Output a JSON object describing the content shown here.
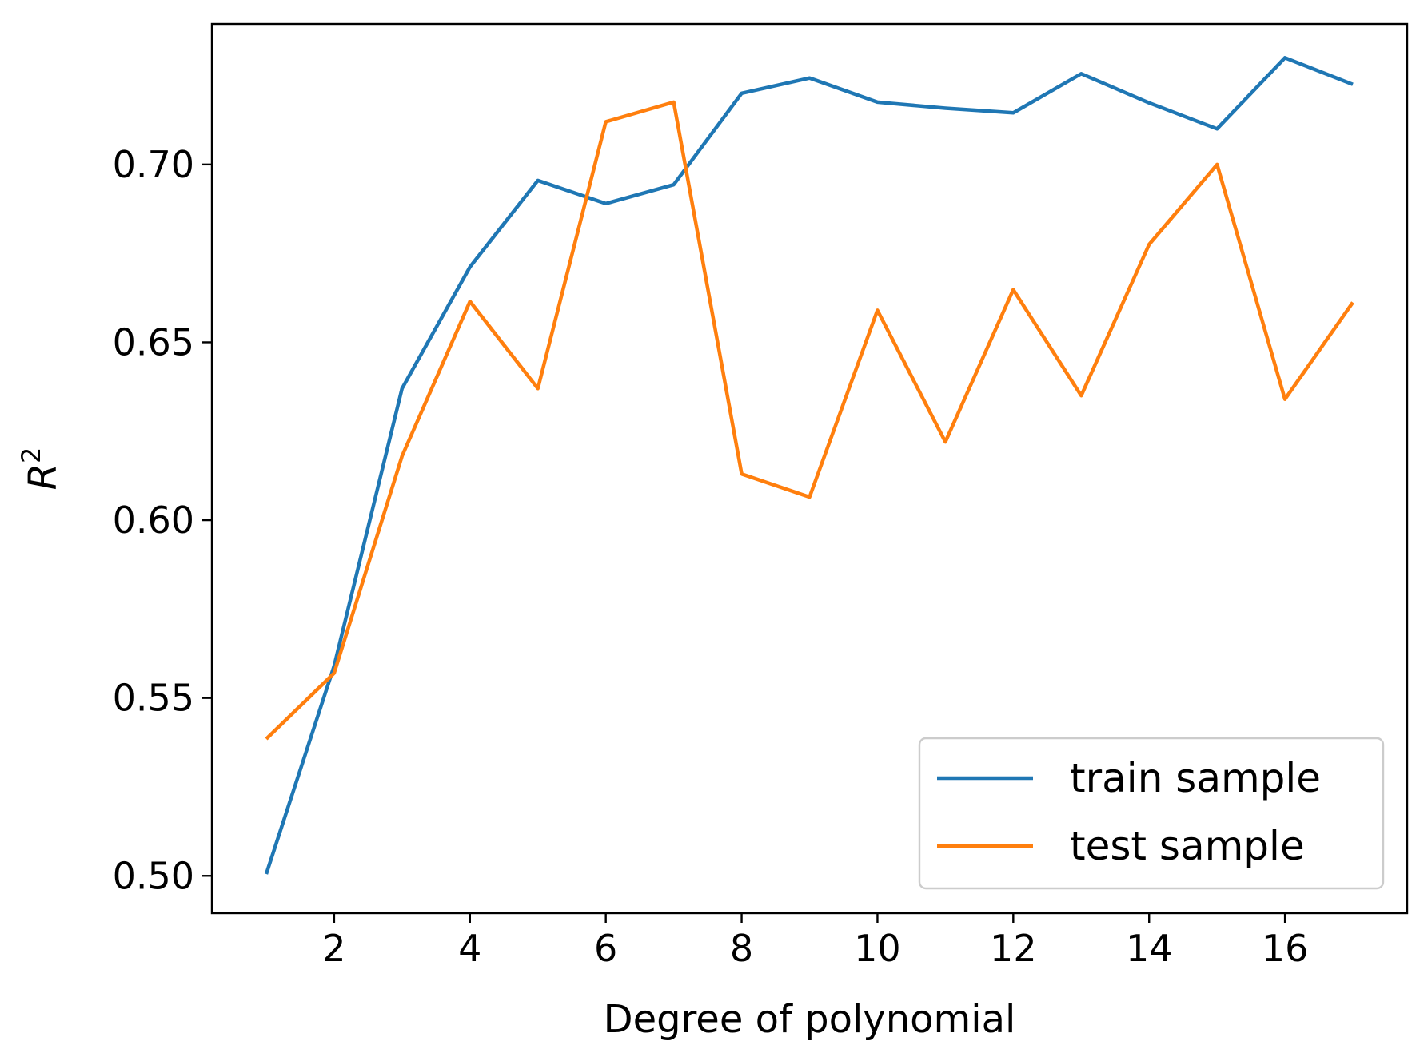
{
  "chart_data": {
    "type": "line",
    "title": "",
    "xlabel": "Degree of polynomial",
    "ylabel_base": "R",
    "ylabel_sup": "2",
    "x": [
      1,
      2,
      3,
      4,
      5,
      6,
      7,
      8,
      9,
      10,
      11,
      12,
      13,
      14,
      15,
      16,
      17
    ],
    "xlim": [
      0.2,
      17.8
    ],
    "ylim": [
      0.4895,
      0.7395
    ],
    "xticks": [
      2,
      4,
      6,
      8,
      10,
      12,
      14,
      16
    ],
    "xtick_labels": [
      "2",
      "4",
      "6",
      "8",
      "10",
      "12",
      "14",
      "16"
    ],
    "yticks": [
      0.5,
      0.55,
      0.6,
      0.65,
      0.7
    ],
    "ytick_labels": [
      "0.50",
      "0.55",
      "0.60",
      "0.65",
      "0.70"
    ],
    "grid": false,
    "legend_position": "bottom-right",
    "series": [
      {
        "name": "train sample",
        "color": "#1f77b4",
        "values": [
          0.5005,
          0.559,
          0.637,
          0.6712,
          0.6955,
          0.689,
          0.6943,
          0.72,
          0.7243,
          0.7175,
          0.7158,
          0.7145,
          0.7255,
          0.7173,
          0.71,
          0.73,
          0.7225
        ]
      },
      {
        "name": "test sample",
        "color": "#ff7f0e",
        "values": [
          0.5385,
          0.557,
          0.618,
          0.6615,
          0.637,
          0.712,
          0.7175,
          0.613,
          0.6065,
          0.659,
          0.622,
          0.6648,
          0.635,
          0.6775,
          0.7,
          0.634,
          0.6612
        ]
      }
    ]
  }
}
